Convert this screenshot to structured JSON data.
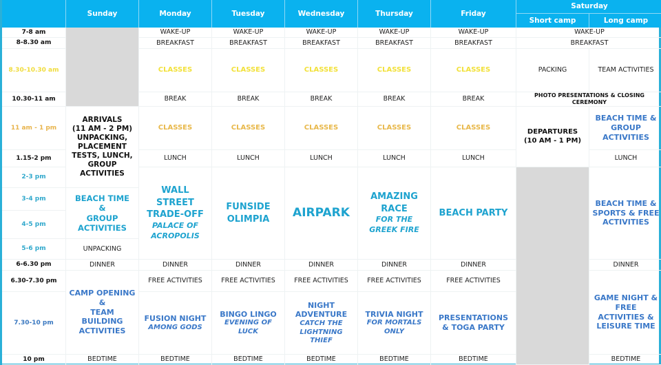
{
  "header": {
    "days": [
      "Sunday",
      "Monday",
      "Tuesday",
      "Wednesday",
      "Thursday",
      "Friday",
      "Saturday"
    ],
    "saturday_sub": [
      "Short camp",
      "Long camp"
    ]
  },
  "times": [
    "7-8 am",
    "8-8.30 am",
    "8.30-10.30 am",
    "10.30-11 am",
    "11 am - 1 pm",
    "1.15-2 pm",
    "2-3 pm",
    "3-4 pm",
    "4-5 pm",
    "5-6 pm",
    "6-6.30 pm",
    "6.30-7.30 pm",
    "7.30-10 pm",
    "10 pm"
  ],
  "common": {
    "wake": "WAKE-UP",
    "breakfast": "BREAKFAST",
    "classes": "CLASSES",
    "break": "BREAK",
    "lunch": "LUNCH",
    "dinner": "DINNER",
    "free": "FREE ACTIVITIES",
    "bedtime": "BEDTIME"
  },
  "sunday": {
    "arrivals": "ARRIVALS\n(11 AM - 2 PM)\nUNPACKING,\nPLACEMENT\nTESTS, LUNCH,\nGROUP\nACTIVITIES",
    "beach": "BEACH TIME\n&\nGROUP\nACTIVITIES",
    "unpacking": "UNPACKING",
    "opening": "CAMP OPENING\n&\nTEAM\nBUILDING\nACTIVITIES"
  },
  "activities": {
    "monday": {
      "title": "WALL\nSTREET\nTRADE-OFF",
      "sub": "PALACE OF\nACROPOLIS"
    },
    "tuesday": {
      "title": "FUNSIDE\nOLIMPIA"
    },
    "wednesday": {
      "title": "AIRPARK"
    },
    "thursday": {
      "title": "AMAZING\nRACE",
      "sub": "FOR THE\nGREEK FIRE"
    },
    "friday": {
      "title": "BEACH PARTY"
    }
  },
  "evenings": {
    "monday": {
      "title": "FUSION NIGHT",
      "sub": "AMONG GODS"
    },
    "tuesday": {
      "title": "BINGO LINGO",
      "sub": "EVENING OF\nLUCK"
    },
    "wednesday": {
      "title": "NIGHT\nADVENTURE",
      "sub": "CATCH THE\nLIGHTNING\nTHIEF"
    },
    "thursday": {
      "title": "TRIVIA NIGHT",
      "sub": "FOR MORTALS\nONLY"
    },
    "friday": {
      "title": "PRESENTATIONS\n& TOGA PARTY"
    }
  },
  "saturday": {
    "packing": "PACKING",
    "team": "TEAM ACTIVITIES",
    "photo": "PHOTO PRESENTATIONS & CLOSING\nCEREMONY",
    "departures": "DEPARTURES\n(10 AM - 1 PM)",
    "beach_group": "BEACH TIME &\nGROUP\nACTIVITIES",
    "beach_sports": "BEACH TIME &\nSPORTS & FREE\nACTIVITIES",
    "game": "GAME NIGHT &\nFREE\nACTIVITIES &\nLEISURE TIME"
  },
  "colors": {
    "header": "#0ab2ef",
    "classes_morning": "#f2e13a",
    "classes_midday": "#e8b84a",
    "activity": "#1ea3cf",
    "evening": "#3a78c8",
    "unavailable": "#d9d9d9"
  }
}
